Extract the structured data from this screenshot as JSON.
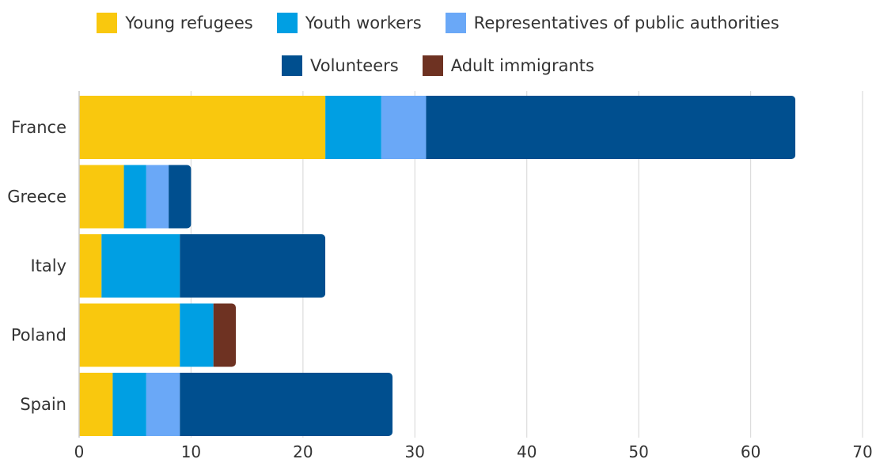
{
  "chart_data": {
    "type": "bar",
    "orientation": "horizontal",
    "stacked": true,
    "categories": [
      "France",
      "Greece",
      "Italy",
      "Poland",
      "Spain"
    ],
    "series": [
      {
        "name": "Young refugees",
        "color": "#F9C80E",
        "values": [
          22,
          4,
          2,
          9,
          3
        ]
      },
      {
        "name": "Youth workers",
        "color": "#009FE3",
        "values": [
          5,
          2,
          7,
          3,
          3
        ]
      },
      {
        "name": "Representatives of public authorities",
        "color": "#6AA8F7",
        "values": [
          4,
          2,
          0,
          0,
          3
        ]
      },
      {
        "name": "Volunteers",
        "color": "#004F8F",
        "values": [
          33,
          2,
          13,
          0,
          19
        ]
      },
      {
        "name": "Adult immigrants",
        "color": "#6E3222",
        "values": [
          0,
          0,
          0,
          2,
          0
        ]
      }
    ],
    "xlim": [
      0,
      70
    ],
    "xticks": [
      "0",
      "10",
      "20",
      "30",
      "40",
      "50",
      "60",
      "70"
    ],
    "grid": "vertical",
    "legend_position": "top"
  }
}
